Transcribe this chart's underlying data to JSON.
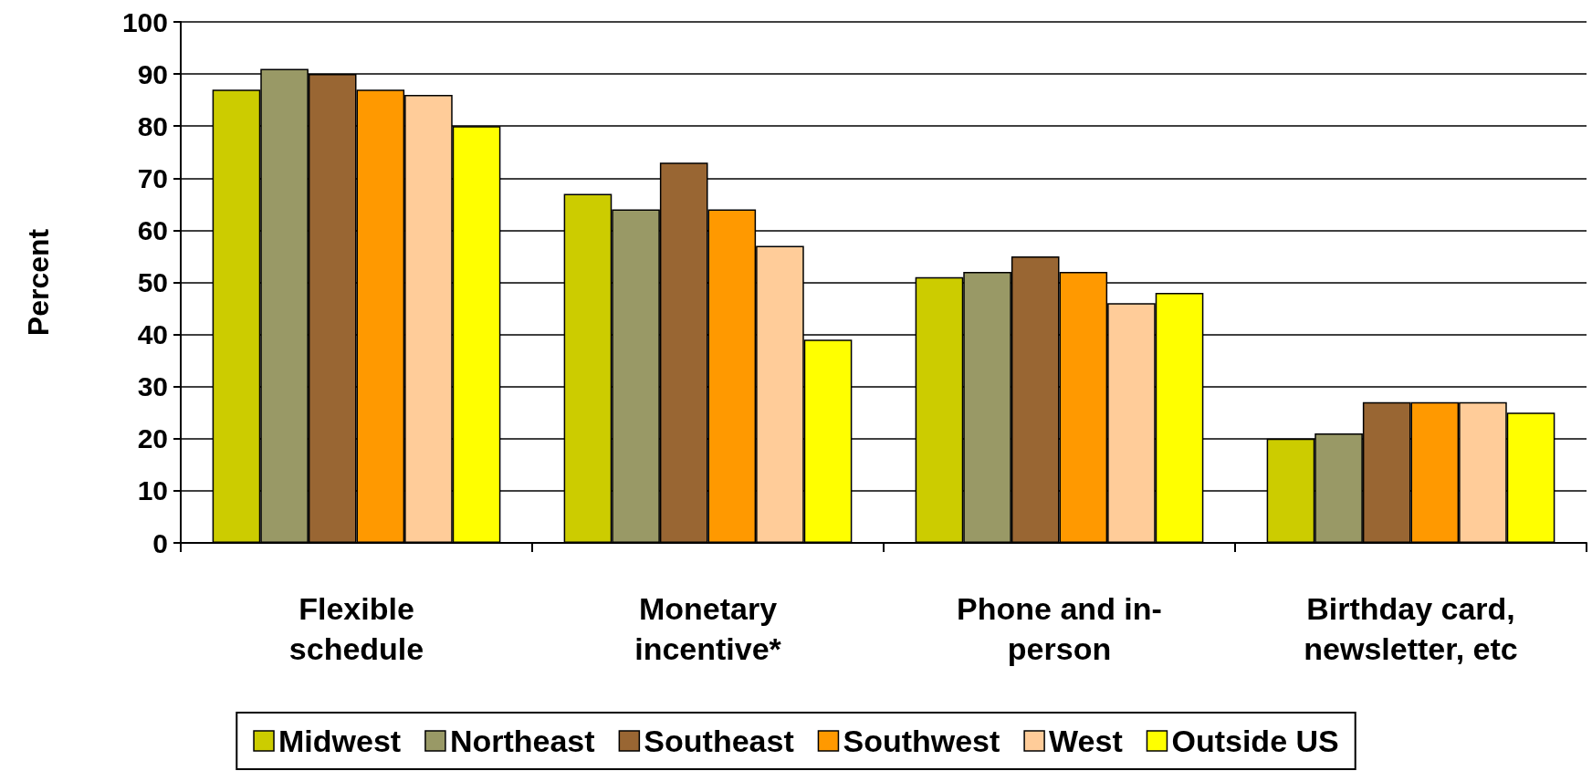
{
  "chart_data": {
    "type": "bar",
    "ylabel": "Percent",
    "categories": [
      "Flexible\nschedule",
      "Monetary\nincentive*",
      "Phone and in-\nperson",
      "Birthday card,\nnewsletter, etc"
    ],
    "series": [
      {
        "name": "Midwest",
        "color": "#cccc00",
        "values": [
          87,
          67,
          51,
          20
        ]
      },
      {
        "name": "Northeast",
        "color": "#999966",
        "values": [
          91,
          64,
          52,
          21
        ]
      },
      {
        "name": "Southeast",
        "color": "#996633",
        "values": [
          90,
          73,
          55,
          27
        ]
      },
      {
        "name": "Southwest",
        "color": "#ff9900",
        "values": [
          87,
          64,
          52,
          27
        ]
      },
      {
        "name": "West",
        "color": "#ffcc99",
        "values": [
          86,
          57,
          46,
          27
        ]
      },
      {
        "name": "Outside US",
        "color": "#ffff00",
        "values": [
          80,
          39,
          48,
          25
        ]
      }
    ],
    "ylim": [
      0,
      100
    ],
    "yticks": [
      0,
      10,
      20,
      30,
      40,
      50,
      60,
      70,
      80,
      90,
      100
    ],
    "grid": "y",
    "legend": "bottom"
  }
}
